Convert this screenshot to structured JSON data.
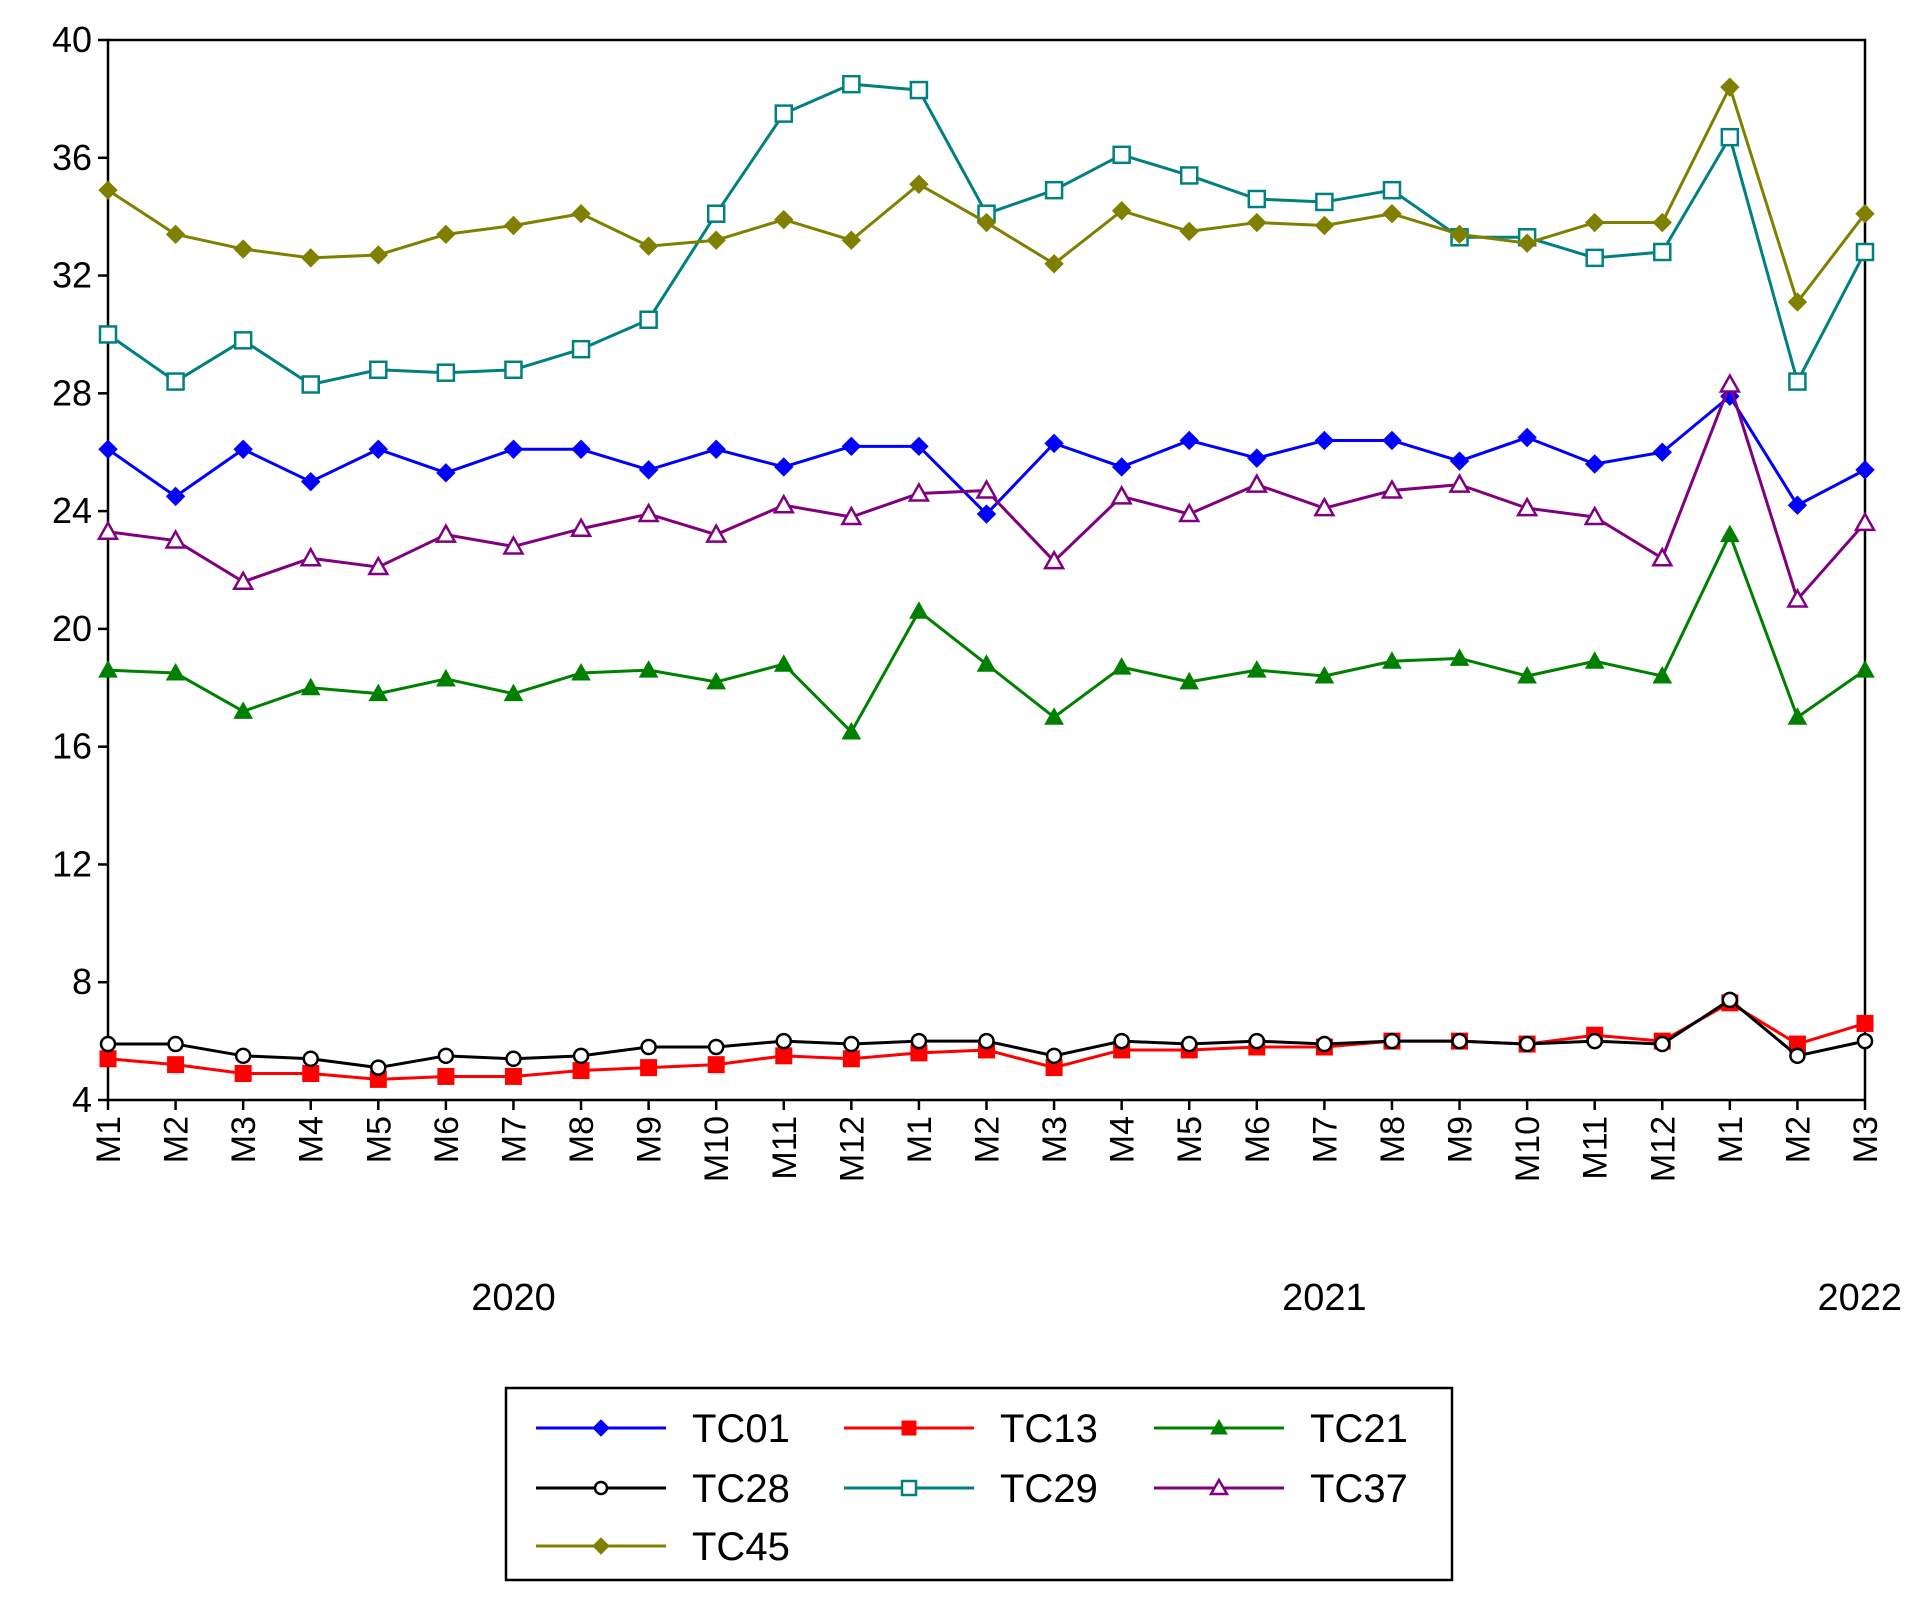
{
  "chart_data": {
    "type": "line",
    "title": "",
    "xlabel": "",
    "ylabel": "",
    "ylim": [
      4,
      40
    ],
    "yticks": [
      "4",
      "8",
      "12",
      "16",
      "20",
      "24",
      "28",
      "32",
      "36",
      "40"
    ],
    "categories": [
      "M1",
      "M2",
      "M3",
      "M4",
      "M5",
      "M6",
      "M7",
      "M8",
      "M9",
      "M10",
      "M11",
      "M12",
      "M1",
      "M2",
      "M3",
      "M4",
      "M5",
      "M6",
      "M7",
      "M8",
      "M9",
      "M10",
      "M11",
      "M12",
      "M1",
      "M2",
      "M3"
    ],
    "year_labels": [
      {
        "label": "2020",
        "center_index": 6
      },
      {
        "label": "2021",
        "center_index": 18
      },
      {
        "label": "2022",
        "center_index": 26
      }
    ],
    "legend_position": "bottom-center",
    "grid": false,
    "series": [
      {
        "name": "TC01",
        "color": "#0000ff",
        "marker": "diamond-filled",
        "values": [
          26.1,
          24.5,
          26.1,
          25.0,
          26.1,
          25.3,
          26.1,
          26.1,
          25.4,
          26.1,
          25.5,
          26.2,
          26.2,
          23.9,
          26.3,
          25.5,
          26.4,
          25.8,
          26.4,
          26.4,
          25.7,
          26.5,
          25.6,
          26.0,
          27.9,
          24.2,
          25.4
        ]
      },
      {
        "name": "TC13",
        "color": "#ff0000",
        "marker": "square-filled",
        "values": [
          5.4,
          5.2,
          4.9,
          4.9,
          4.7,
          4.8,
          4.8,
          5.0,
          5.1,
          5.2,
          5.5,
          5.4,
          5.6,
          5.7,
          5.1,
          5.7,
          5.7,
          5.8,
          5.8,
          6.0,
          6.0,
          5.9,
          6.2,
          6.0,
          7.3,
          5.9,
          6.6
        ]
      },
      {
        "name": "TC21",
        "color": "#008000",
        "marker": "triangle-filled",
        "values": [
          18.6,
          18.5,
          17.2,
          18.0,
          17.8,
          18.3,
          17.8,
          18.5,
          18.6,
          18.2,
          18.8,
          16.5,
          20.6,
          18.8,
          17.0,
          18.7,
          18.2,
          18.6,
          18.4,
          18.9,
          19.0,
          18.4,
          18.9,
          18.4,
          23.2,
          17.0,
          18.6
        ]
      },
      {
        "name": "TC28",
        "color": "#000000",
        "marker": "circle-open",
        "values": [
          5.9,
          5.9,
          5.5,
          5.4,
          5.1,
          5.5,
          5.4,
          5.5,
          5.8,
          5.8,
          6.0,
          5.9,
          6.0,
          6.0,
          5.5,
          6.0,
          5.9,
          6.0,
          5.9,
          6.0,
          6.0,
          5.9,
          6.0,
          5.9,
          7.4,
          5.5,
          6.0
        ]
      },
      {
        "name": "TC29",
        "color": "#008080",
        "marker": "square-open",
        "values": [
          30.0,
          28.4,
          29.8,
          28.3,
          28.8,
          28.7,
          28.8,
          29.5,
          30.5,
          34.1,
          37.5,
          38.5,
          38.3,
          34.1,
          34.9,
          36.1,
          35.4,
          34.6,
          34.5,
          34.9,
          33.3,
          33.3,
          32.6,
          32.8,
          36.7,
          28.4,
          32.8
        ]
      },
      {
        "name": "TC37",
        "color": "#800080",
        "marker": "triangle-open",
        "values": [
          23.3,
          23.0,
          21.6,
          22.4,
          22.1,
          23.2,
          22.8,
          23.4,
          23.9,
          23.2,
          24.2,
          23.8,
          24.6,
          24.7,
          22.3,
          24.5,
          23.9,
          24.9,
          24.1,
          24.7,
          24.9,
          24.1,
          23.8,
          22.4,
          28.3,
          21.0,
          23.6
        ]
      },
      {
        "name": "TC45",
        "color": "#808000",
        "marker": "diamond-filled",
        "values": [
          34.9,
          33.4,
          32.9,
          32.6,
          32.7,
          33.4,
          33.7,
          34.1,
          33.0,
          33.2,
          33.9,
          33.2,
          35.1,
          33.8,
          32.4,
          34.2,
          33.5,
          33.8,
          33.7,
          34.1,
          33.4,
          33.1,
          33.8,
          33.8,
          38.4,
          31.1,
          34.1
        ]
      }
    ]
  }
}
